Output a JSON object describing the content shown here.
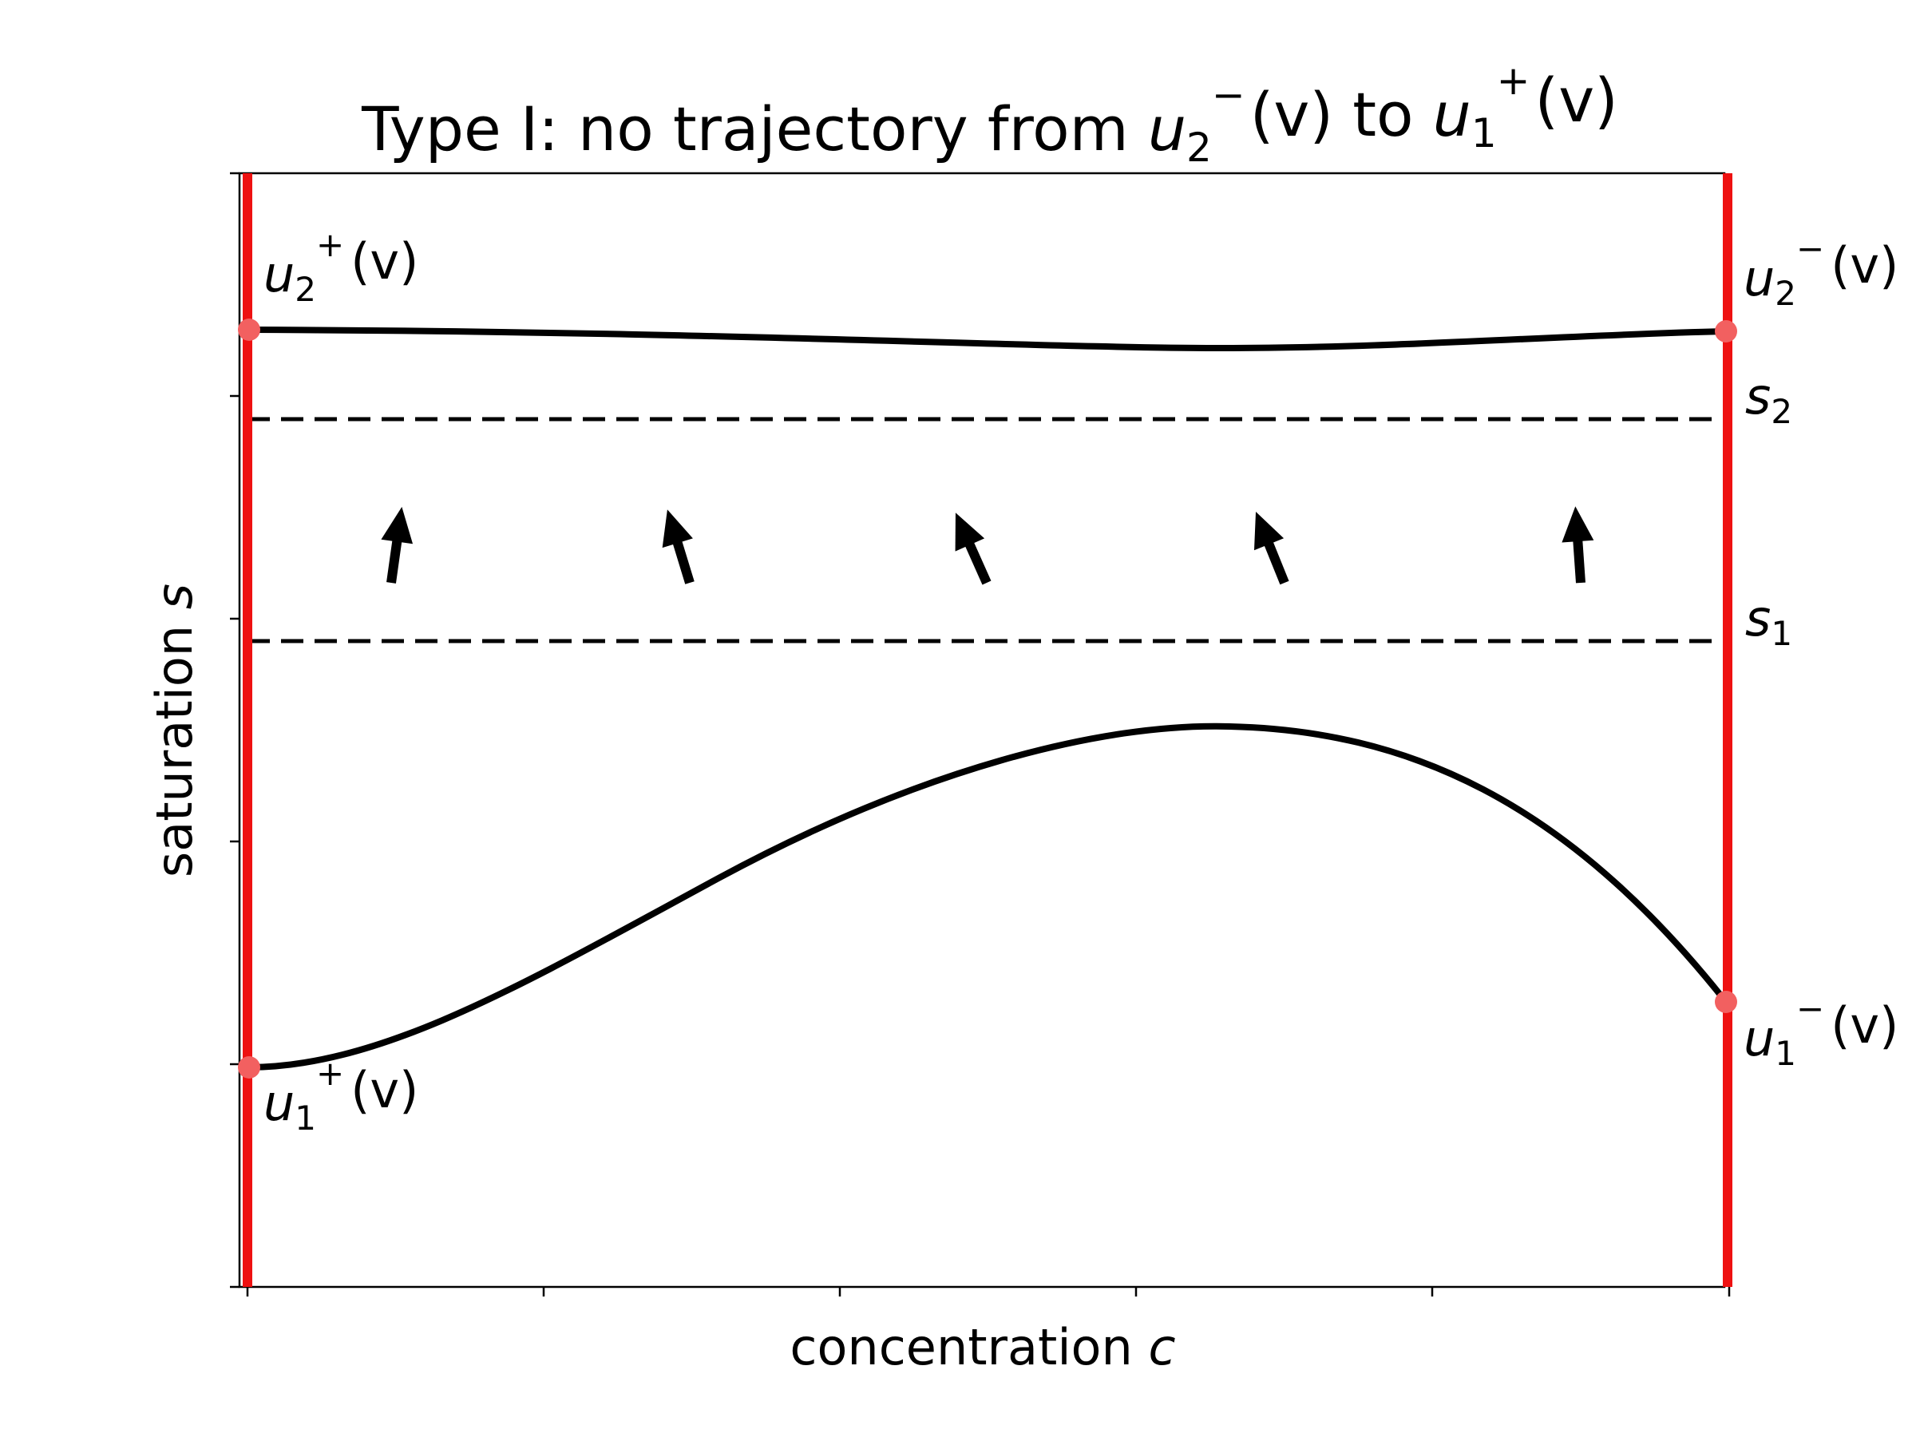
{
  "title": {
    "prefix": "Type I: no trajectory from ",
    "from_var": "u",
    "from_sub": "2",
    "from_sup": "−",
    "from_arg": "(v)",
    "middle": " to ",
    "to_var": "u",
    "to_sub": "1",
    "to_sup": "+",
    "to_arg": "(v)"
  },
  "axes": {
    "xlabel_text": "concentration ",
    "xlabel_var": "c",
    "ylabel_text": "saturation ",
    "ylabel_var": "s"
  },
  "labels": {
    "u2_plus": {
      "var": "u",
      "sub": "2",
      "sup": "+",
      "arg": "(v)"
    },
    "u2_minus": {
      "var": "u",
      "sub": "2",
      "sup": "−",
      "arg": "(v)"
    },
    "u1_plus": {
      "var": "u",
      "sub": "1",
      "sup": "+",
      "arg": "(v)"
    },
    "u1_minus": {
      "var": "u",
      "sub": "1",
      "sup": "−",
      "arg": "(v)"
    },
    "s2": {
      "var": "s",
      "sub": "2"
    },
    "s1": {
      "var": "s",
      "sub": "1"
    }
  },
  "colors": {
    "boundary": "#ee1111",
    "point": "#f26060",
    "curve": "#000000"
  }
}
